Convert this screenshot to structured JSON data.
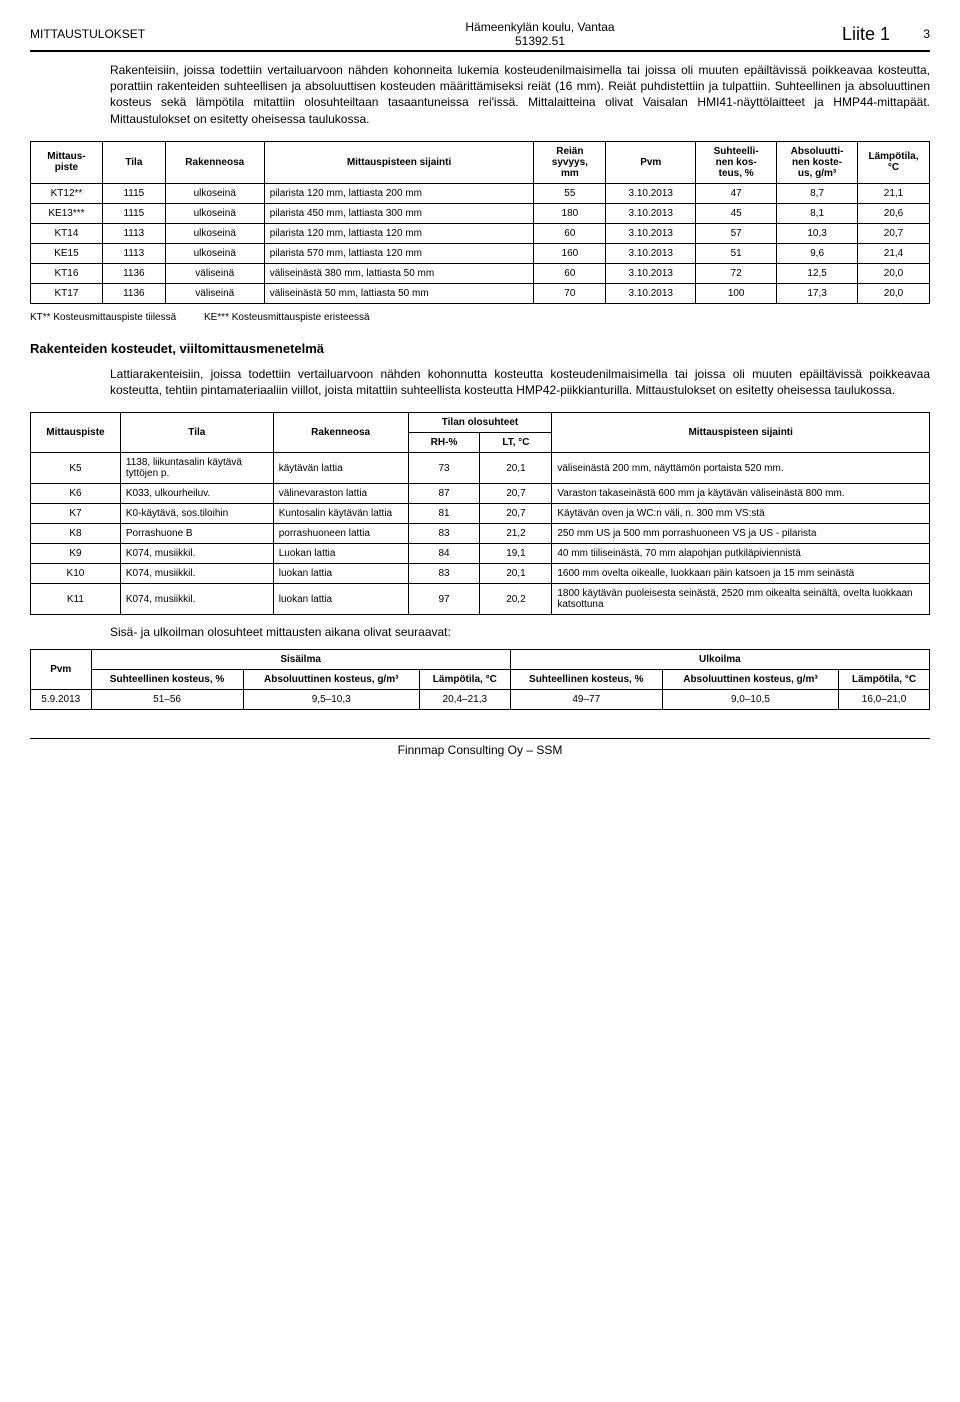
{
  "header": {
    "left": "MITTAUSTULOKSET",
    "center_line1": "Hämeenkylän koulu, Vantaa",
    "center_line2": "51392.51",
    "right": "Liite 1",
    "page": "3"
  },
  "intro": "Rakenteisiin, joissa todettiin vertailuarvoon nähden kohonneita lukemia kosteudenilmaisimella tai joissa oli muuten epäiltävissä poikkeavaa kosteutta, porattiin rakenteiden suhteellisen ja absoluuttisen kosteuden määrittämiseksi reiät (16 mm). Reiät puhdistettiin ja tulpattiin. Suhteellinen ja absoluuttinen kosteus sekä lämpötila mitattiin olosuhteiltaan tasaantuneissa rei'issä. Mittalaitteina olivat Vaisalan HMI41-näyttölaitteet ja HMP44-mittapäät. Mittaustulokset on esitetty oheisessa taulukossa.",
  "table1": {
    "headers": [
      "Mittaus-\npiste",
      "Tila",
      "Rakenneosa",
      "Mittauspisteen sijainti",
      "Reiän\nsyvyys,\nmm",
      "Pvm",
      "Suhteelli-\nnen kos-\nteus, %",
      "Absoluutti-\nnen koste-\nus, g/m³",
      "Lämpötila,\n°C"
    ],
    "rows": [
      [
        "KT12**",
        "1115",
        "ulkoseinä",
        "pilarista 120 mm, lattiasta 200 mm",
        "55",
        "3.10.2013",
        "47",
        "8,7",
        "21,1"
      ],
      [
        "KE13***",
        "1115",
        "ulkoseinä",
        "pilarista 450 mm, lattiasta 300 mm",
        "180",
        "3.10.2013",
        "45",
        "8,1",
        "20,6"
      ],
      [
        "KT14",
        "1113",
        "ulkoseinä",
        "pilarista 120 mm, lattiasta 120 mm",
        "60",
        "3.10.2013",
        "57",
        "10,3",
        "20,7"
      ],
      [
        "KE15",
        "1113",
        "ulkoseinä",
        "pilarista 570 mm, lattiasta 120 mm",
        "160",
        "3.10.2013",
        "51",
        "9,6",
        "21,4"
      ],
      [
        "KT16",
        "1136",
        "väliseinä",
        "väliseinästä 380 mm, lattiasta 50 mm",
        "60",
        "3.10.2013",
        "72",
        "12,5",
        "20,0"
      ],
      [
        "KT17",
        "1136",
        "väliseinä",
        "väliseinästä 50 mm, lattiasta 50 mm",
        "70",
        "3.10.2013",
        "100",
        "17,3",
        "20,0"
      ]
    ],
    "footnote": "KT** Kosteusmittauspiste tiilessä          KE*** Kosteusmittauspiste eristeessä"
  },
  "section2_title": "Rakenteiden kosteudet, viiltomittausmenetelmä",
  "section2_text": "Lattiarakenteisiin, joissa todettiin vertailuarvoon nähden kohonnutta kosteutta kosteudenilmaisimella tai joissa oli muuten epäiltävissä poikkeavaa kosteutta, tehtiin pintamateriaaliin viillot, joista mitattiin suhteellista kosteutta HMP42-piikkianturilla. Mittaustulokset on esitetty oheisessa taulukossa.",
  "table2": {
    "header_top": [
      "Mittauspiste",
      "Tila",
      "Rakenneosa",
      "Tilan olosuhteet",
      "Mittauspisteen sijainti"
    ],
    "header_sub": [
      "RH-%",
      "LT, °C"
    ],
    "rows": [
      [
        "K5",
        "1138, liikuntasalin käytävä tyttöjen p.",
        "käytävän lattia",
        "73",
        "20,1",
        "väliseinästä 200 mm, näyttämön portaista 520 mm."
      ],
      [
        "K6",
        "K033, ulkourheiluv.",
        "välinevaraston lattia",
        "87",
        "20,7",
        "Varaston takaseinästä 600 mm ja käytävän väliseinästä 800 mm."
      ],
      [
        "K7",
        "K0-käytävä, sos.tiloihin",
        "Kuntosalin käytävän lattia",
        "81",
        "20,7",
        "Käytävän oven ja WC:n väli, n. 300 mm VS:stä"
      ],
      [
        "K8",
        "Porrashuone B",
        "porrashuoneen lattia",
        "83",
        "21,2",
        "250 mm US ja 500 mm porrashuoneen VS ja US - pilarista"
      ],
      [
        "K9",
        "K074, musiikkil.",
        "Luokan lattia",
        "84",
        "19,1",
        "40 mm tiiliseinästä, 70 mm alapohjan putkiläpiviennistä"
      ],
      [
        "K10",
        "K074, musiikkil.",
        "luokan lattia",
        "83",
        "20,1",
        "1600 mm ovelta oikealle, luokkaan päin katsoen ja 15 mm seinästä"
      ],
      [
        "K11",
        "K074, musiikkil.",
        "luokan lattia",
        "97",
        "20,2",
        "1800 käytävän puoleisesta seinästä, 2520 mm oikealta seinältä, ovelta luokkaan katsottuna"
      ]
    ]
  },
  "subtext": "Sisä- ja ulkoilman olosuhteet mittausten aikana olivat seuraavat:",
  "table3": {
    "top": [
      "Pvm",
      "Sisäilma",
      "Ulkoilma"
    ],
    "sub": [
      "Suhteellinen kosteus, %",
      "Absoluuttinen kosteus, g/m³",
      "Lämpötila, °C",
      "Suhteellinen kosteus, %",
      "Absoluuttinen kosteus, g/m³",
      "Lämpötila, °C"
    ],
    "row": [
      "5.9.2013",
      "51–56",
      "9,5–10,3",
      "20,4–21,3",
      "49–77",
      "9,0–10,5",
      "16,0–21,0"
    ]
  },
  "footer": "Finnmap Consulting Oy – SSM"
}
